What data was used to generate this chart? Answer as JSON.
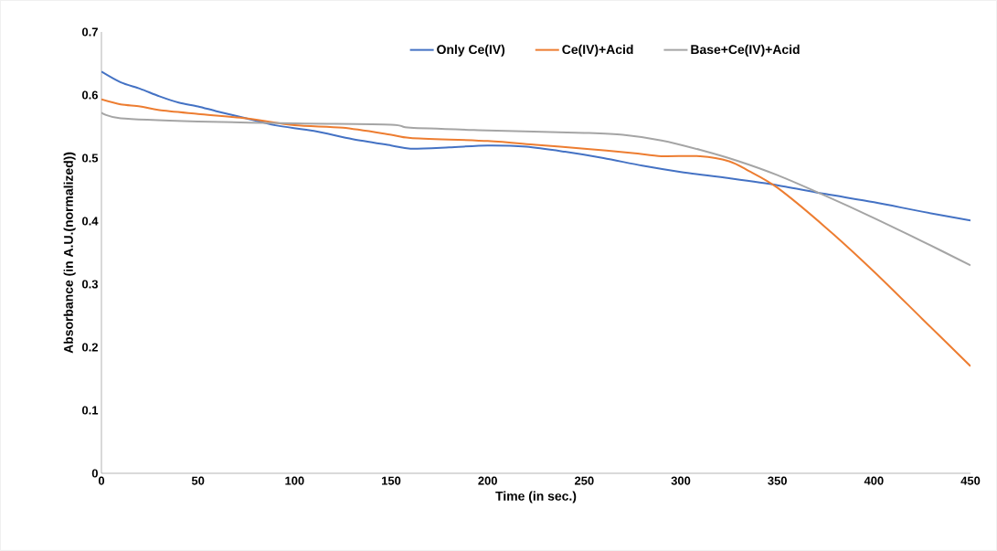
{
  "chart_data": {
    "type": "line",
    "xlabel": "Time (in sec.)",
    "ylabel": "Absorbance (in A.U.(normalized))",
    "xlim": [
      0,
      450
    ],
    "xticks": [
      0,
      50,
      100,
      150,
      200,
      250,
      300,
      350,
      400,
      450
    ],
    "ylim": [
      0,
      0.7
    ],
    "yticks": [
      0,
      0.1,
      0.2,
      0.3,
      0.4,
      0.5,
      0.6,
      0.7
    ],
    "grid": false,
    "legend": "top",
    "marker": "none",
    "line_style": "solid",
    "series": [
      {
        "name": "Only Ce(IV)",
        "color": "#4472c4",
        "x": [
          0,
          10,
          20,
          30,
          40,
          50,
          60,
          75,
          90,
          110,
          130,
          150,
          160,
          180,
          200,
          220,
          240,
          260,
          280,
          300,
          325,
          350,
          375,
          400,
          425,
          450
        ],
        "values": [
          0.637,
          0.62,
          0.61,
          0.598,
          0.588,
          0.582,
          0.574,
          0.563,
          0.552,
          0.543,
          0.53,
          0.52,
          0.515,
          0.517,
          0.52,
          0.518,
          0.51,
          0.5,
          0.488,
          0.478,
          0.468,
          0.457,
          0.443,
          0.43,
          0.415,
          0.401
        ]
      },
      {
        "name": "Ce(IV)+Acid",
        "color": "#ed7d31",
        "x": [
          0,
          10,
          20,
          30,
          50,
          75,
          100,
          125,
          150,
          160,
          200,
          225,
          250,
          275,
          290,
          310,
          325,
          335,
          350,
          375,
          400,
          425,
          450
        ],
        "values": [
          0.593,
          0.585,
          0.582,
          0.576,
          0.57,
          0.563,
          0.552,
          0.548,
          0.537,
          0.532,
          0.527,
          0.521,
          0.515,
          0.508,
          0.503,
          0.503,
          0.495,
          0.48,
          0.453,
          0.39,
          0.32,
          0.245,
          0.17
        ]
      },
      {
        "name": "Base+Ce(IV)+Acid",
        "color": "#a5a5a5",
        "x": [
          0,
          10,
          50,
          100,
          150,
          160,
          200,
          250,
          270,
          290,
          310,
          330,
          350,
          375,
          400,
          425,
          450
        ],
        "values": [
          0.572,
          0.563,
          0.558,
          0.555,
          0.553,
          0.548,
          0.544,
          0.54,
          0.537,
          0.528,
          0.513,
          0.495,
          0.473,
          0.44,
          0.405,
          0.368,
          0.33
        ]
      }
    ]
  }
}
